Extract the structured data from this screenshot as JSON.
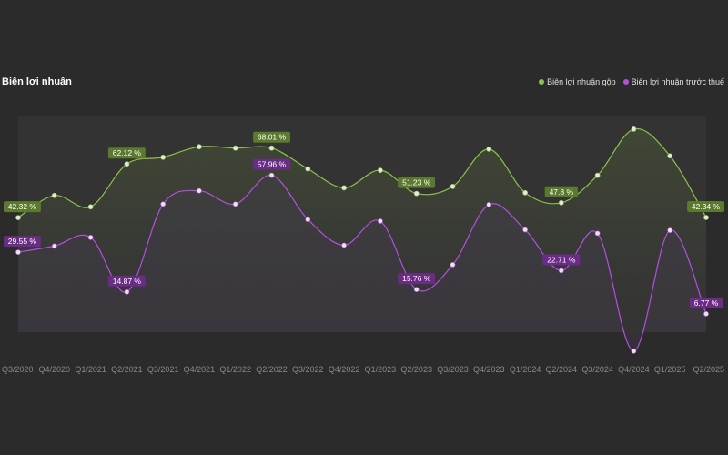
{
  "chart_data": {
    "type": "line",
    "title": "Biên lợi nhuận",
    "categories": [
      "Q3/2020",
      "Q4/2020",
      "Q1/2021",
      "Q2/2021",
      "Q3/2021",
      "Q4/2021",
      "Q1/2022",
      "Q2/2022",
      "Q3/2022",
      "Q4/2022",
      "Q1/2023",
      "Q2/2023",
      "Q3/2023",
      "Q4/2023",
      "Q1/2024",
      "Q2/2024",
      "Q3/2024",
      "Q4/2024",
      "Q1/2025",
      "Q2/2025"
    ],
    "series": [
      {
        "name": "Biên lợi nhuận gộp",
        "color": "#8bc34a",
        "values": [
          42.32,
          50.5,
          46.3,
          62.12,
          64.6,
          68.5,
          68.0,
          68.01,
          60.3,
          53.3,
          59.8,
          51.23,
          53.8,
          67.6,
          51.5,
          47.8,
          57.9,
          75.0,
          65.1,
          42.34
        ],
        "labels": [
          {
            "index": 0,
            "text": "42.32 %"
          },
          {
            "index": 3,
            "text": "62.12 %"
          },
          {
            "index": 7,
            "text": "68.01 %"
          },
          {
            "index": 11,
            "text": "51.23 %"
          },
          {
            "index": 15,
            "text": "47.8 %"
          },
          {
            "index": 19,
            "text": "42.34 %"
          }
        ]
      },
      {
        "name": "Biên lợi nhuận trước thuế",
        "color": "#b44fe0",
        "values": [
          29.55,
          31.8,
          35.0,
          14.87,
          47.3,
          52.2,
          47.3,
          57.96,
          41.6,
          32.1,
          41.0,
          15.76,
          24.9,
          47.1,
          37.8,
          22.71,
          36.5,
          -7.0,
          37.6,
          6.77
        ],
        "labels": [
          {
            "index": 0,
            "text": "29.55 %"
          },
          {
            "index": 3,
            "text": "14.87 %"
          },
          {
            "index": 7,
            "text": "57.96 %"
          },
          {
            "index": 11,
            "text": "15.76 %"
          },
          {
            "index": 15,
            "text": "22.71 %"
          },
          {
            "index": 19,
            "text": "6.77 %"
          }
        ]
      }
    ],
    "ylim": [
      0,
      80
    ],
    "grid": false,
    "legend": "top-right",
    "xlabel": "",
    "ylabel": ""
  }
}
